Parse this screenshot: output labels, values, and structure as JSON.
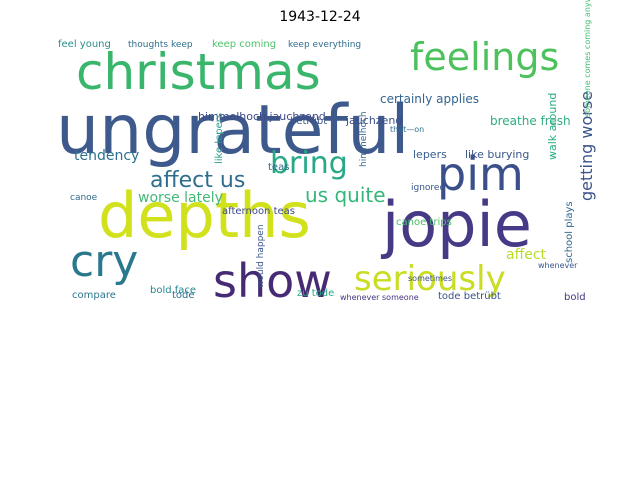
{
  "chart_data": {
    "type": "wordcloud",
    "title": "1943-12-24",
    "background": "#ffffff",
    "words": [
      {
        "text": "ungrateful",
        "color": "#3e5a8c"
      },
      {
        "text": "depths",
        "color": "#d1e11c"
      },
      {
        "text": "jopie",
        "color": "#463a86"
      },
      {
        "text": "christmas",
        "color": "#3ab66c"
      },
      {
        "text": "feelings",
        "color": "#4cc15c"
      },
      {
        "text": "pim",
        "color": "#3b4f8a"
      },
      {
        "text": "show",
        "color": "#462b74"
      },
      {
        "text": "cry",
        "color": "#2a788e"
      },
      {
        "text": "seriously",
        "color": "#c9dd22"
      },
      {
        "text": "bring",
        "color": "#27a886"
      },
      {
        "text": "affect us",
        "color": "#2e6d8e"
      },
      {
        "text": "us quite",
        "color": "#35b779"
      },
      {
        "text": "getting worse",
        "color": "#3b538b"
      },
      {
        "text": "tendency",
        "color": "#2c718e"
      },
      {
        "text": "worse lately",
        "color": "#44b876"
      },
      {
        "text": "certainly applies",
        "color": "#32648e"
      },
      {
        "text": "affect",
        "color": "#b6dd2a"
      },
      {
        "text": "himmelhoch jauchzend",
        "color": "#3e4a89"
      },
      {
        "text": "breathe fresh",
        "color": "#2fae7d"
      },
      {
        "text": "jauchzend",
        "color": "#3d4f8a"
      },
      {
        "text": "betrübt",
        "color": "#3b5289"
      },
      {
        "text": "lepers",
        "color": "#365c8d"
      },
      {
        "text": "like burying",
        "color": "#39568c"
      },
      {
        "text": "canoe trips",
        "color": "#48bd68"
      },
      {
        "text": "school plays",
        "color": "#2f678e"
      },
      {
        "text": "walk around",
        "color": "#27ad81"
      },
      {
        "text": "afternoon teas",
        "color": "#3e4989"
      },
      {
        "text": "like lepers",
        "color": "#2a9c8a"
      },
      {
        "text": "teas",
        "color": "#31678e"
      },
      {
        "text": "bold face",
        "color": "#24868e"
      },
      {
        "text": "tode",
        "color": "#2e6e8e"
      },
      {
        "text": "compare",
        "color": "#2a778e"
      },
      {
        "text": "zu tode",
        "color": "#26a984"
      },
      {
        "text": "tode betrübt",
        "color": "#3b528b"
      },
      {
        "text": "whenever someone",
        "color": "#46347f"
      },
      {
        "text": "sometimes",
        "color": "#3c4f8a"
      },
      {
        "text": "feel young",
        "color": "#2c8c8c"
      },
      {
        "text": "thoughts keep",
        "color": "#2d6f8e"
      },
      {
        "text": "keep coming",
        "color": "#4ec36b"
      },
      {
        "text": "keep everything",
        "color": "#2f6c8e"
      },
      {
        "text": "canoe",
        "color": "#30688e"
      },
      {
        "text": "would happen",
        "color": "#3a548c"
      },
      {
        "text": "ignored",
        "color": "#39568c"
      },
      {
        "text": "himmelhoch",
        "color": "#31698e"
      },
      {
        "text": "whenever",
        "color": "#39568c"
      },
      {
        "text": "bold",
        "color": "#453781"
      },
      {
        "text": "that—on",
        "color": "#2d708e"
      },
      {
        "text": "someone comes coming anyway",
        "color": "#44bf70"
      }
    ]
  }
}
